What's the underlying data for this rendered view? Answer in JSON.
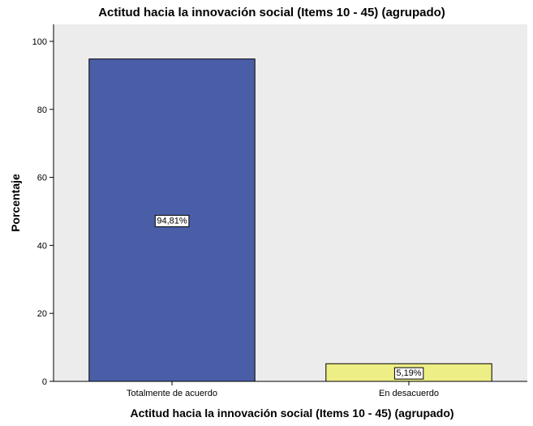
{
  "chart_data": {
    "type": "bar",
    "title": "Actitud hacia la innovación social (Items 10 - 45) (agrupado)",
    "xlabel": "Actitud hacia la innovación social (Items 10 - 45) (agrupado)",
    "ylabel": "Porcentaje",
    "categories": [
      "Totalmente de acuerdo",
      "En desacuerdo"
    ],
    "values": [
      94.81,
      5.19
    ],
    "data_labels": [
      "94,81%",
      "5,19%"
    ],
    "ylim": [
      0,
      105
    ],
    "yticks": [
      0,
      20,
      40,
      60,
      80,
      100
    ],
    "grid": false,
    "colors": {
      "bars": [
        "#4a5ea8",
        "#eeee86"
      ],
      "plot_background": "#ececec",
      "frame": "#000000"
    }
  }
}
